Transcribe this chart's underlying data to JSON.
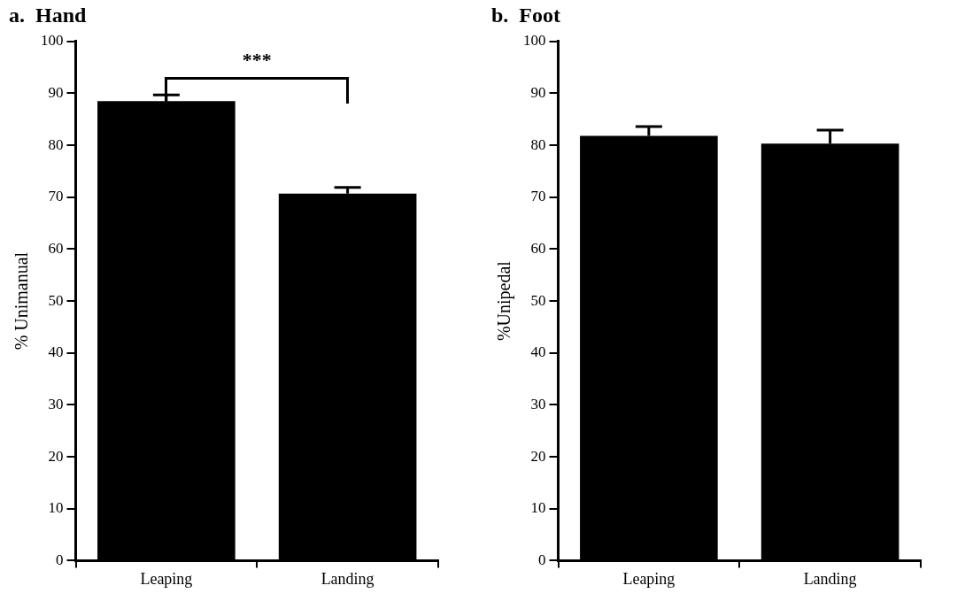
{
  "chart_data": [
    {
      "type": "bar",
      "title": "a.  Hand",
      "ylabel": "% Unimanual",
      "categories": [
        "Leaping",
        "Landing"
      ],
      "values": [
        88.5,
        70.7
      ],
      "errors": [
        [
          88.5,
          89.7
        ],
        [
          70.7,
          71.9
        ]
      ],
      "color": "#000000",
      "ylim": [
        0,
        100
      ],
      "yticks": [
        0,
        10,
        20,
        30,
        40,
        50,
        60,
        70,
        80,
        90,
        100
      ],
      "annotations": [
        "***"
      ]
    },
    {
      "type": "bar",
      "title": "b.  Foot",
      "ylabel": "%Unipedal",
      "categories": [
        "Leaping",
        "Landing"
      ],
      "values": [
        81.8,
        80.3
      ],
      "errors": [
        [
          81.8,
          83.6
        ],
        [
          80.3,
          82.9
        ]
      ],
      "color": "#000000",
      "ylim": [
        0,
        100
      ],
      "yticks": [
        0,
        10,
        20,
        30,
        40,
        50,
        60,
        70,
        80,
        90,
        100
      ]
    }
  ]
}
